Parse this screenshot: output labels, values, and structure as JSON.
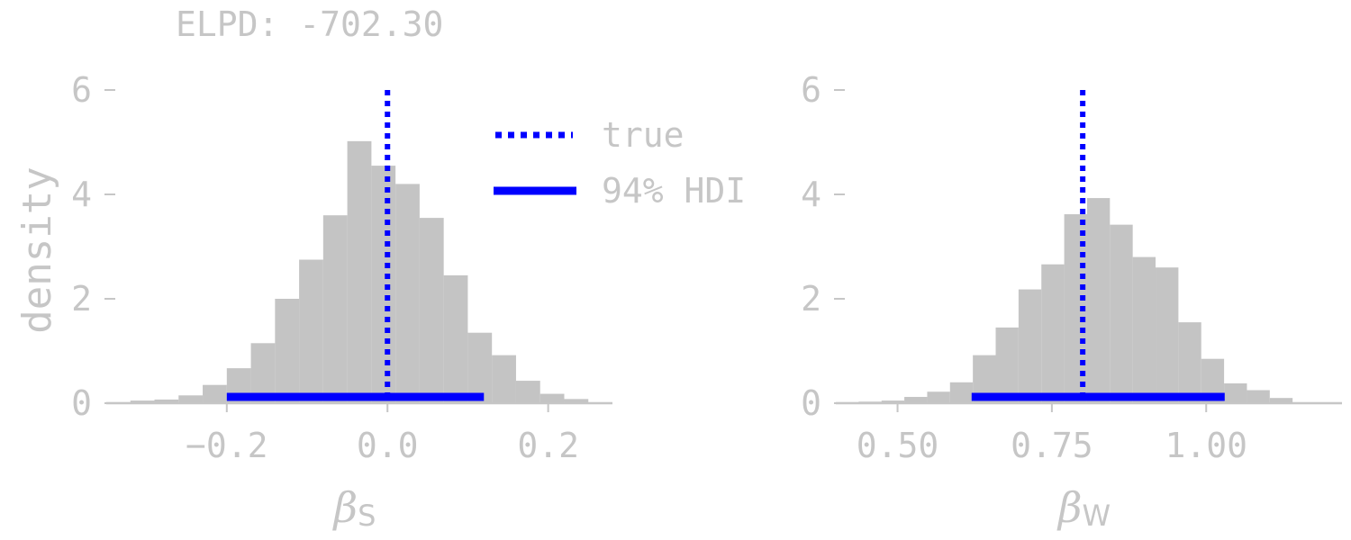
{
  "subtitle": "ELPD: -702.30",
  "ylabel": "density",
  "legend": {
    "true_label": "true",
    "hdi_label": "94% HDI"
  },
  "colors": {
    "bars": "#c4c4c4",
    "accent": "#0000ff",
    "text": "#c6c6c6",
    "axis": "#c6c6c6"
  },
  "chart_data": [
    {
      "type": "bar",
      "title": "",
      "xlabel_symbol": "β",
      "xlabel_subscript": "S",
      "ylabel": "density",
      "xlim": [
        -0.35,
        0.28
      ],
      "ylim": [
        0,
        6
      ],
      "xticks": [
        -0.2,
        0.0,
        0.2
      ],
      "xtick_labels": [
        "−0.2",
        "0.0",
        "0.2"
      ],
      "yticks": [
        0,
        2,
        4,
        6
      ],
      "ytick_labels": [
        "0",
        "2",
        "4",
        "6"
      ],
      "grid": false,
      "legend_position": "top-right",
      "bin_edges": [
        -0.35,
        -0.32,
        -0.29,
        -0.26,
        -0.23,
        -0.2,
        -0.17,
        -0.14,
        -0.11,
        -0.08,
        -0.05,
        -0.02,
        0.01,
        0.04,
        0.07,
        0.1,
        0.13,
        0.16,
        0.19,
        0.22,
        0.25
      ],
      "densities": [
        0.02,
        0.05,
        0.07,
        0.15,
        0.35,
        0.67,
        1.15,
        2.0,
        2.75,
        3.6,
        5.02,
        4.55,
        4.2,
        3.55,
        2.45,
        1.35,
        0.92,
        0.43,
        0.18,
        0.08
      ],
      "true_value": 0.0,
      "hdi": [
        -0.2,
        0.12
      ]
    },
    {
      "type": "bar",
      "title": "",
      "xlabel_symbol": "β",
      "xlabel_subscript": "W",
      "ylabel": "",
      "xlim": [
        0.4,
        1.22
      ],
      "ylim": [
        0,
        6
      ],
      "xticks": [
        0.5,
        0.75,
        1.0
      ],
      "xtick_labels": [
        "0.50",
        "0.75",
        "1.00"
      ],
      "yticks": [
        0,
        2,
        4,
        6
      ],
      "ytick_labels": [
        "0",
        "2",
        "4",
        "6"
      ],
      "grid": false,
      "legend_position": "",
      "bin_edges": [
        0.4,
        0.437,
        0.474,
        0.511,
        0.548,
        0.585,
        0.622,
        0.659,
        0.696,
        0.733,
        0.77,
        0.807,
        0.844,
        0.881,
        0.918,
        0.955,
        0.992,
        1.029,
        1.066,
        1.103,
        1.14
      ],
      "densities": [
        0.02,
        0.03,
        0.05,
        0.12,
        0.22,
        0.4,
        0.92,
        1.45,
        2.18,
        2.66,
        3.62,
        3.93,
        3.42,
        2.8,
        2.6,
        1.55,
        0.85,
        0.38,
        0.25,
        0.1
      ],
      "true_value": 0.8,
      "hdi": [
        0.62,
        1.03
      ]
    }
  ]
}
